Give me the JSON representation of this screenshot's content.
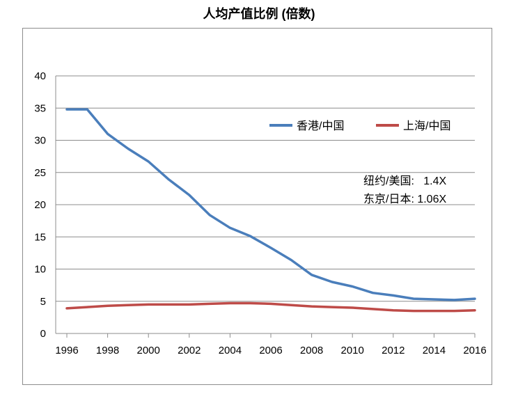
{
  "chart_data": {
    "type": "line",
    "title": "人均产值比例 (倍数)",
    "xlabel": "",
    "ylabel": "",
    "xlim": [
      1996,
      2016
    ],
    "ylim": [
      0,
      40
    ],
    "yticks": [
      0,
      5,
      10,
      15,
      20,
      25,
      30,
      35,
      40
    ],
    "xticks": [
      1996,
      1998,
      2000,
      2002,
      2004,
      2006,
      2008,
      2010,
      2012,
      2014,
      2016
    ],
    "grid": true,
    "legend": "upper-right",
    "x": [
      1996,
      1997,
      1998,
      1999,
      2000,
      2001,
      2002,
      2003,
      2004,
      2005,
      2006,
      2007,
      2008,
      2009,
      2010,
      2011,
      2012,
      2013,
      2014,
      2015,
      2016
    ],
    "series": [
      {
        "name": "香港/中国",
        "color": "#4a7ebb",
        "values": [
          34.8,
          34.8,
          31.0,
          28.7,
          26.7,
          23.9,
          21.5,
          18.4,
          16.4,
          15.1,
          13.3,
          11.4,
          9.1,
          8.0,
          7.3,
          6.3,
          5.9,
          5.4,
          5.3,
          5.2,
          5.4
        ]
      },
      {
        "name": "上海/中国",
        "color": "#be4b48",
        "values": [
          3.9,
          4.1,
          4.3,
          4.4,
          4.5,
          4.5,
          4.5,
          4.6,
          4.7,
          4.7,
          4.6,
          4.4,
          4.2,
          4.1,
          4.0,
          3.8,
          3.6,
          3.5,
          3.5,
          3.5,
          3.6
        ]
      }
    ],
    "annotations": [
      "纽约/美国:   1.4X",
      "东京/日本: 1.06X"
    ]
  }
}
